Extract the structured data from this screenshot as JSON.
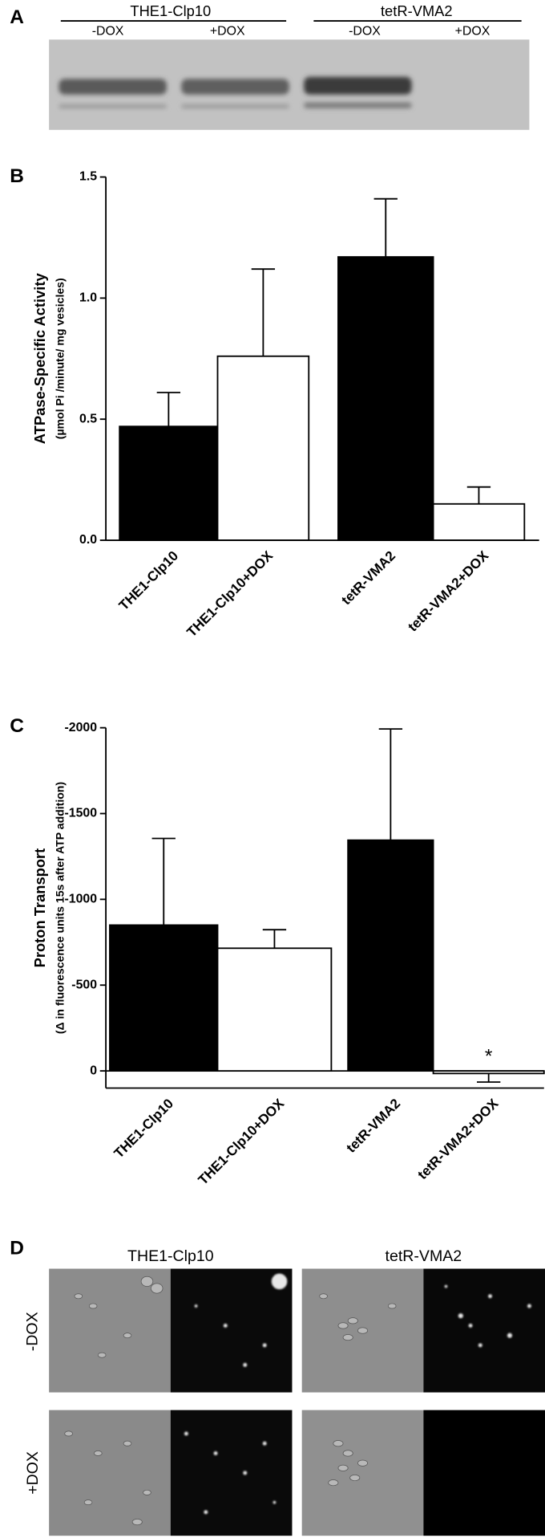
{
  "panel_a": {
    "label": "A",
    "groups": [
      "THE1-Clp10",
      "tetR-VMA2"
    ],
    "lanes": [
      "-DOX",
      "+DOX",
      "-DOX",
      "+DOX"
    ]
  },
  "chart_data": [
    {
      "type": "bar",
      "panel": "B",
      "ylabel": "ATPase-Specific Activity",
      "ylabel_sub": "(µmol Pi /minute/ mg vesicles)",
      "categories": [
        "THE1-Clp10",
        "THE1-Clp10+DOX",
        "tetR-VMA2",
        "tetR-VMA2+DOX"
      ],
      "values": [
        0.47,
        0.76,
        1.17,
        0.15
      ],
      "errors": [
        0.14,
        0.36,
        0.24,
        0.07
      ],
      "colors": [
        "#000000",
        "#ffffff",
        "#000000",
        "#ffffff"
      ],
      "ylim": [
        0,
        1.5
      ],
      "yticks": [
        {
          "value": 0,
          "label": "0.0"
        },
        0.5,
        {
          "value": 1,
          "label": "1.0"
        },
        1.5
      ]
    },
    {
      "type": "bar",
      "panel": "C",
      "ylabel": "Proton Transport",
      "ylabel_sub": "(Δ in fluorescence units 15s after ATP addition)",
      "categories": [
        "THE1-Clp10",
        "THE1-Clp10+DOX",
        "tetR-VMA2",
        "tetR-VMA2+DOX"
      ],
      "values": [
        -850,
        -715,
        -1345,
        15
      ],
      "errors": [
        505,
        108,
        648,
        50
      ],
      "colors": [
        "#000000",
        "#ffffff",
        "#000000",
        "#ffffff"
      ],
      "ylim": [
        100,
        -2000
      ],
      "yticks": [
        0,
        -500,
        -1000,
        -1500,
        -2000
      ],
      "annotation": "*"
    }
  ],
  "panel_d": {
    "label": "D",
    "columns": [
      "THE1-Clp10",
      "tetR-VMA2"
    ],
    "rows": [
      "-DOX",
      "+DOX"
    ]
  }
}
